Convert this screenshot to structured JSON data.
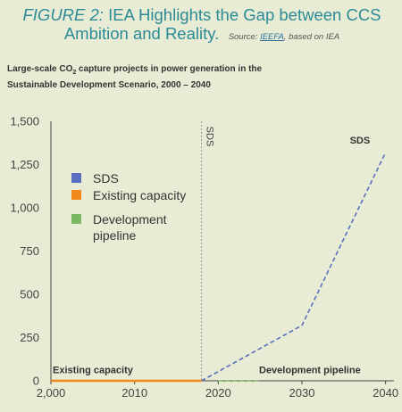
{
  "header": {
    "figure_label": "FIGURE 2:",
    "title_line1": "IEA Highlights the Gap between CCS",
    "title_line2": "Ambition and Reality.",
    "source_prefix": "Source:",
    "source_link": "IEEFA",
    "source_suffix": ", based on IEA"
  },
  "subtitle": {
    "part1": "Large-scale CO",
    "sub": "2",
    "part2": " capture projects in power generation in the",
    "line2": "Sustainable Development Scenario, 2000 – 2040"
  },
  "chart_data": {
    "type": "line",
    "xlim": [
      2000,
      2041
    ],
    "ylim": [
      0,
      1500
    ],
    "xticks": [
      2000,
      2010,
      2020,
      2030,
      2040
    ],
    "xtick_labels": [
      "2,000",
      "2010",
      "2020",
      "2030",
      "2040"
    ],
    "yticks": [
      0,
      250,
      500,
      750,
      1000,
      1250,
      1500
    ],
    "ytick_labels": [
      "0",
      "250",
      "500",
      "750",
      "1,000",
      "1,250",
      "1,500"
    ],
    "grid": false,
    "legend_position": "left",
    "series": [
      {
        "name": "SDS",
        "color": "#5b6fc0",
        "style": "dashed",
        "x": [
          2018,
          2030,
          2040
        ],
        "y": [
          0,
          320,
          1320
        ]
      },
      {
        "name": "Existing capacity",
        "color": "#f0891a",
        "style": "solid",
        "x": [
          2000,
          2018
        ],
        "y": [
          0,
          0
        ]
      },
      {
        "name": "Development pipeline",
        "color": "#7cb860",
        "style": "dashed",
        "x": [
          2020,
          2025
        ],
        "y": [
          0,
          0
        ]
      }
    ],
    "vline": {
      "x": 2018,
      "label": "SDS"
    },
    "annotations": [
      {
        "text": "SDS",
        "x": 2038,
        "y": 1320
      },
      {
        "text": "Existing capacity",
        "x": 2001,
        "y": 55
      },
      {
        "text": "Development pipeline",
        "x": 2025,
        "y": 55
      }
    ]
  }
}
